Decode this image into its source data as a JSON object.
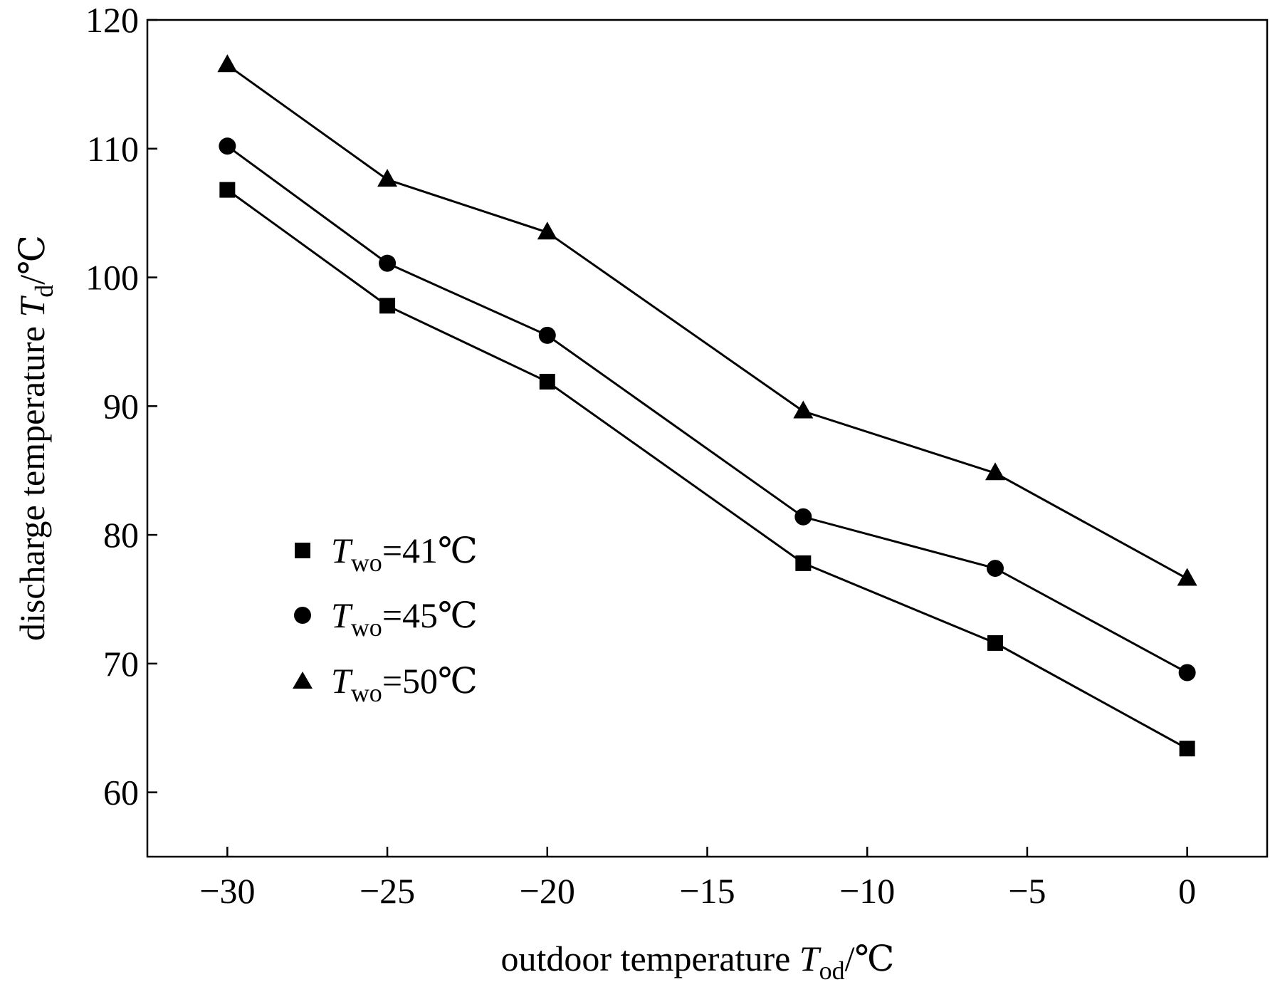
{
  "chart_data": {
    "type": "line",
    "xlabel": {
      "prefix": "outdoor temperature ",
      "var": "T",
      "sub": "od",
      "suffix": "/℃"
    },
    "ylabel": {
      "prefix": "discharge temperature ",
      "var": "T",
      "sub": "d",
      "suffix": "/℃"
    },
    "xlim": [
      -32.5,
      2.5
    ],
    "ylim": [
      55,
      120
    ],
    "xticks": [
      -30,
      -25,
      -20,
      -15,
      -10,
      -5,
      0
    ],
    "xtick_labels": [
      "−30",
      "−25",
      "−20",
      "−15",
      "−10",
      "−5",
      "0"
    ],
    "yticks": [
      60,
      70,
      80,
      90,
      100,
      110,
      120
    ],
    "ytick_labels": [
      "60",
      "70",
      "80",
      "90",
      "100",
      "110",
      "120"
    ],
    "grid": false,
    "legend_position": "left-center",
    "x": [
      -30,
      -25,
      -20,
      -12,
      -6,
      0
    ],
    "series": [
      {
        "var": "T",
        "sub": "wo",
        "value": "=41℃",
        "marker": "square",
        "values": [
          106.8,
          97.8,
          91.9,
          77.8,
          71.6,
          63.4
        ]
      },
      {
        "var": "T",
        "sub": "wo",
        "value": "=45℃",
        "marker": "circle",
        "values": [
          110.2,
          101.1,
          95.5,
          81.4,
          77.4,
          69.3
        ]
      },
      {
        "var": "T",
        "sub": "wo",
        "value": "=50℃",
        "marker": "triangle",
        "values": [
          116.5,
          107.6,
          103.5,
          89.6,
          84.8,
          76.6
        ]
      }
    ],
    "color": "#000000"
  }
}
